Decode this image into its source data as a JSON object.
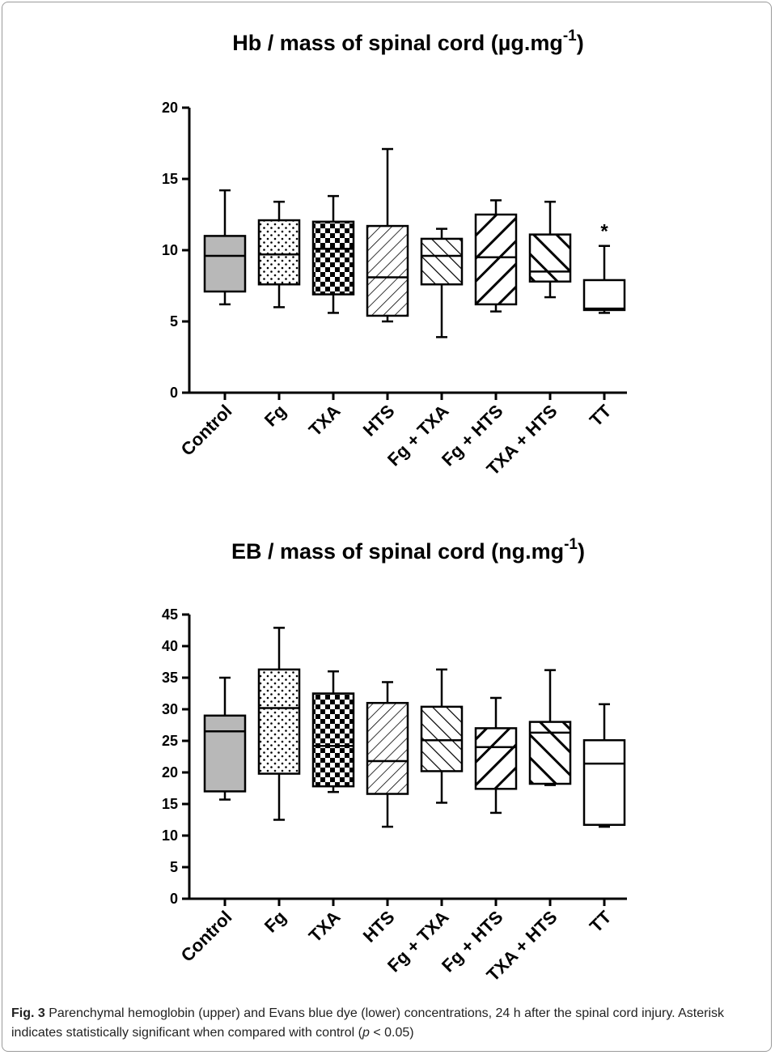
{
  "chart_data": [
    {
      "type": "box",
      "title": "Hb / mass of spinal cord (µg.mg",
      "title_sup": "-1",
      "title_end": ")",
      "categories": [
        "Control",
        "Fg",
        "TXA",
        "HTS",
        "Fg + TXA",
        "Fg + HTS",
        "TXA + HTS",
        "TT"
      ],
      "ylim": [
        0,
        20
      ],
      "yticks": [
        0,
        5,
        10,
        15,
        20
      ],
      "boxes": [
        {
          "min": 6.2,
          "q1": 7.1,
          "median": 9.6,
          "q3": 11.0,
          "max": 14.2
        },
        {
          "min": 6.0,
          "q1": 7.6,
          "median": 9.7,
          "q3": 12.1,
          "max": 13.4
        },
        {
          "min": 5.6,
          "q1": 6.9,
          "median": 10.1,
          "q3": 12.0,
          "max": 13.8
        },
        {
          "min": 5.0,
          "q1": 5.4,
          "median": 8.1,
          "q3": 11.7,
          "max": 17.1
        },
        {
          "min": 3.9,
          "q1": 7.6,
          "median": 9.6,
          "q3": 10.8,
          "max": 11.5
        },
        {
          "min": 5.7,
          "q1": 6.2,
          "median": 9.5,
          "q3": 12.5,
          "max": 13.5
        },
        {
          "min": 6.7,
          "q1": 7.8,
          "median": 8.5,
          "q3": 11.1,
          "max": 13.4
        },
        {
          "min": 5.6,
          "q1": 5.8,
          "median": 5.9,
          "q3": 7.9,
          "max": 10.3
        }
      ],
      "annotations": [
        {
          "category": "TT",
          "text": "*"
        }
      ]
    },
    {
      "type": "box",
      "title": "EB / mass of spinal cord (ng.mg",
      "title_sup": "-1",
      "title_end": ")",
      "categories": [
        "Control",
        "Fg",
        "TXA",
        "HTS",
        "Fg + TXA",
        "Fg + HTS",
        "TXA + HTS",
        "TT"
      ],
      "ylim": [
        0,
        45
      ],
      "yticks": [
        0,
        5,
        10,
        15,
        20,
        25,
        30,
        35,
        40,
        45
      ],
      "boxes": [
        {
          "min": 15.7,
          "q1": 17.0,
          "median": 26.5,
          "q3": 29.0,
          "max": 35.0
        },
        {
          "min": 12.5,
          "q1": 19.8,
          "median": 30.2,
          "q3": 36.3,
          "max": 42.9
        },
        {
          "min": 16.9,
          "q1": 17.8,
          "median": 24.2,
          "q3": 32.5,
          "max": 36.0
        },
        {
          "min": 11.4,
          "q1": 16.6,
          "median": 21.8,
          "q3": 31.0,
          "max": 34.3
        },
        {
          "min": 15.2,
          "q1": 20.2,
          "median": 25.1,
          "q3": 30.4,
          "max": 36.3
        },
        {
          "min": 13.6,
          "q1": 17.4,
          "median": 24.0,
          "q3": 27.0,
          "max": 31.8
        },
        {
          "min": 18.0,
          "q1": 18.2,
          "median": 26.3,
          "q3": 28.0,
          "max": 36.2
        },
        {
          "min": 11.4,
          "q1": 11.7,
          "median": 21.4,
          "q3": 25.1,
          "max": 30.8
        }
      ],
      "annotations": []
    }
  ],
  "caption": {
    "label": "Fig. 3",
    "text_a": " Parenchymal hemoglobin (upper) and Evans blue dye (lower) concentrations, 24 h after the spinal cord injury. Asterisk indicates statistically significant when compared with control (",
    "p": "p",
    "text_b": " < 0.05)"
  }
}
